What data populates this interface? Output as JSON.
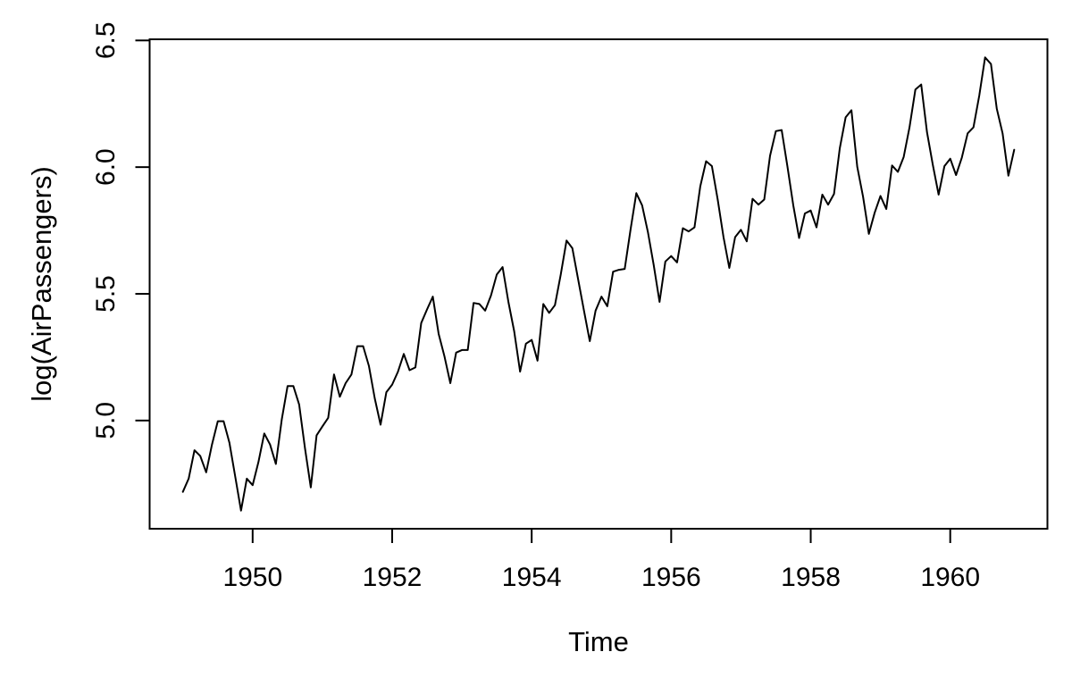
{
  "chart_data": {
    "type": "line",
    "title": "",
    "xlabel": "Time",
    "ylabel": "log(AirPassengers)",
    "grid": false,
    "legend": "none",
    "frame_box": true,
    "line_color": "#000000",
    "axis_color": "#000000",
    "background_color": "#ffffff",
    "xlim": [
      1948.5233,
      1961.3933
    ],
    "ylim": [
      4.5729,
      6.5045
    ],
    "x_ticks": [
      {
        "label": "1950",
        "value": 1950
      },
      {
        "label": "1952",
        "value": 1952
      },
      {
        "label": "1954",
        "value": 1954
      },
      {
        "label": "1956",
        "value": 1956
      },
      {
        "label": "1958",
        "value": 1958
      },
      {
        "label": "1960",
        "value": 1960
      }
    ],
    "y_ticks": [
      {
        "label": "5.0",
        "value": 5.0
      },
      {
        "label": "5.5",
        "value": 5.5
      },
      {
        "label": "6.0",
        "value": 6.0
      },
      {
        "label": "6.5",
        "value": 6.5
      }
    ],
    "series": [
      {
        "name": "log(AirPassengers)",
        "x_start": 1949,
        "x_end": 1960.9167,
        "frequency": 12,
        "transform": "log",
        "raw_values": [
          112,
          118,
          132,
          129,
          121,
          135,
          148,
          148,
          136,
          119,
          104,
          118,
          115,
          126,
          141,
          135,
          125,
          149,
          170,
          170,
          158,
          133,
          114,
          140,
          145,
          150,
          178,
          163,
          172,
          178,
          199,
          199,
          184,
          162,
          146,
          166,
          171,
          180,
          193,
          181,
          183,
          218,
          230,
          242,
          209,
          191,
          172,
          194,
          196,
          196,
          236,
          235,
          229,
          243,
          264,
          272,
          237,
          211,
          180,
          201,
          204,
          188,
          235,
          227,
          234,
          264,
          302,
          293,
          259,
          229,
          203,
          229,
          242,
          233,
          267,
          269,
          270,
          315,
          364,
          347,
          312,
          274,
          237,
          278,
          284,
          277,
          317,
          313,
          318,
          374,
          413,
          405,
          355,
          306,
          271,
          306,
          315,
          301,
          356,
          348,
          355,
          422,
          465,
          467,
          404,
          347,
          305,
          336,
          340,
          318,
          362,
          348,
          363,
          435,
          491,
          505,
          404,
          359,
          310,
          337,
          360,
          342,
          406,
          396,
          420,
          472,
          548,
          559,
          463,
          407,
          362,
          405,
          417,
          391,
          419,
          461,
          472,
          535,
          622,
          606,
          508,
          461,
          390,
          432
        ]
      }
    ]
  }
}
